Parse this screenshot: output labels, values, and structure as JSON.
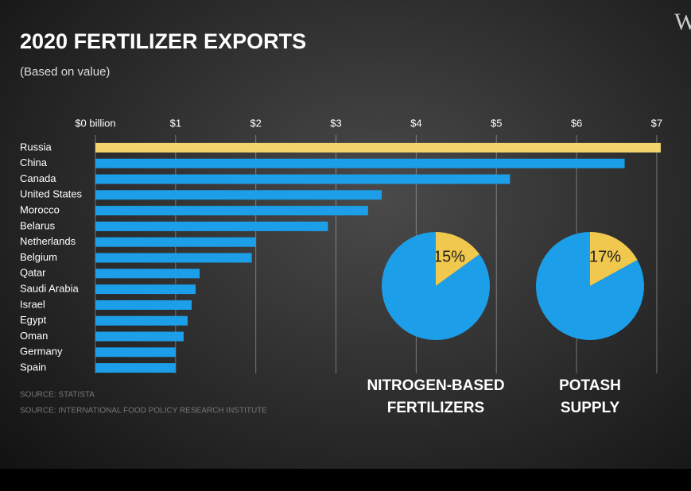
{
  "title": "2020 FERTILIZER EXPORTS",
  "subtitle": "(Based on value)",
  "logo": "W",
  "sources": [
    "SOURCE: STATISTA",
    "SOURCE: INTERNATIONAL FOOD POLICY RESEARCH INSTITUTE"
  ],
  "chart_data": [
    {
      "type": "bar",
      "orientation": "horizontal",
      "categories": [
        "Russia",
        "China",
        "Canada",
        "United States",
        "Morocco",
        "Belarus",
        "Netherlands",
        "Belgium",
        "Qatar",
        "Saudi Arabia",
        "Israel",
        "Egypt",
        "Oman",
        "Germany",
        "Spain"
      ],
      "values": [
        7.05,
        6.6,
        5.17,
        3.57,
        3.4,
        2.9,
        2.0,
        1.95,
        1.3,
        1.25,
        1.2,
        1.15,
        1.1,
        1.0,
        1.0
      ],
      "colors": [
        "#f3d46c",
        "#1c9ee8",
        "#1c9ee8",
        "#1c9ee8",
        "#1c9ee8",
        "#1c9ee8",
        "#1c9ee8",
        "#1c9ee8",
        "#1c9ee8",
        "#1c9ee8",
        "#1c9ee8",
        "#1c9ee8",
        "#1c9ee8",
        "#1c9ee8",
        "#1c9ee8"
      ],
      "xlim": [
        0,
        7.1
      ],
      "xticks": [
        {
          "value": 0,
          "label": "$0 billion"
        },
        {
          "value": 1,
          "label": "$1"
        },
        {
          "value": 2,
          "label": "$2"
        },
        {
          "value": 3,
          "label": "$3"
        },
        {
          "value": 4,
          "label": "$4"
        },
        {
          "value": 5,
          "label": "$5"
        },
        {
          "value": 6,
          "label": "$6"
        },
        {
          "value": 7,
          "label": "$7"
        }
      ],
      "grid": true
    },
    {
      "type": "pie",
      "title": "NITROGEN-BASED FERTILIZERS",
      "values": [
        15,
        85
      ],
      "value_labels": [
        "15%",
        null
      ],
      "colors": [
        "#f0c84e",
        "#1c9ee8"
      ]
    },
    {
      "type": "pie",
      "title": "POTASH SUPPLY",
      "values": [
        17,
        83
      ],
      "value_labels": [
        "17%",
        null
      ],
      "colors": [
        "#f0c84e",
        "#1c9ee8"
      ]
    }
  ]
}
